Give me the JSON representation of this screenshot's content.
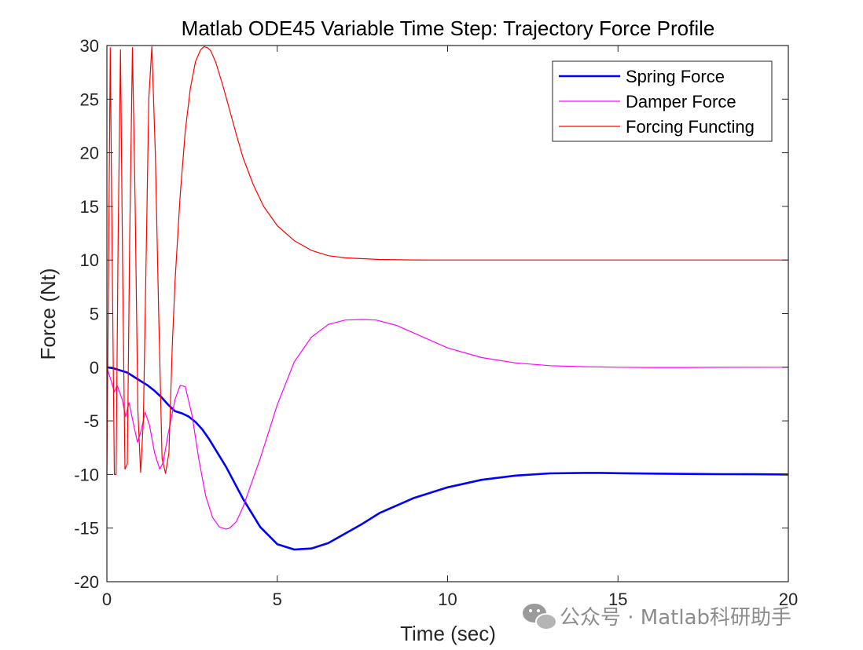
{
  "chart_data": {
    "type": "line",
    "title": "Matlab ODE45 Variable Time Step:  Trajectory Force Profile",
    "xlabel": "Time (sec)",
    "ylabel": "Force (Nt)",
    "xlim": [
      0,
      20
    ],
    "ylim": [
      -20,
      30
    ],
    "xticks": [
      0,
      5,
      10,
      15,
      20
    ],
    "xtick_labels": [
      "0",
      "5",
      "10",
      "15",
      "20"
    ],
    "yticks": [
      -20,
      -15,
      -10,
      -5,
      0,
      5,
      10,
      15,
      20,
      25,
      30
    ],
    "ytick_labels": [
      "-20",
      "-15",
      "-10",
      "-5",
      "0",
      "5",
      "10",
      "15",
      "20",
      "25",
      "30"
    ],
    "grid": false,
    "legend_position": "top-right",
    "series": [
      {
        "name": "Spring Force",
        "color": "#0000ff",
        "x": [
          0,
          0.2,
          0.4,
          0.6,
          0.8,
          1.0,
          1.2,
          1.4,
          1.6,
          1.8,
          2.0,
          2.2,
          2.4,
          2.6,
          2.8,
          3.0,
          3.5,
          4.0,
          4.5,
          5.0,
          5.5,
          6.0,
          6.5,
          7.0,
          7.5,
          8.0,
          9.0,
          10.0,
          11.0,
          12.0,
          13.0,
          14.0,
          14.5,
          15.0,
          16.0,
          17.0,
          18.0,
          19.0,
          20.0
        ],
        "y": [
          0,
          -0.1,
          -0.3,
          -0.5,
          -0.9,
          -1.3,
          -1.7,
          -2.2,
          -2.8,
          -3.5,
          -4.1,
          -4.3,
          -4.6,
          -5.1,
          -5.8,
          -6.7,
          -9.3,
          -12.3,
          -14.9,
          -16.5,
          -17.0,
          -16.9,
          -16.4,
          -15.5,
          -14.6,
          -13.6,
          -12.2,
          -11.2,
          -10.5,
          -10.1,
          -9.9,
          -9.85,
          -9.85,
          -9.88,
          -9.92,
          -9.95,
          -9.97,
          -9.98,
          -10.0
        ]
      },
      {
        "name": "Damper Force",
        "color": "#ff00ff",
        "x": [
          0,
          0.1,
          0.22,
          0.3,
          0.45,
          0.55,
          0.65,
          0.8,
          0.9,
          1.0,
          1.12,
          1.25,
          1.4,
          1.55,
          1.65,
          1.8,
          2.0,
          2.15,
          2.3,
          2.5,
          2.7,
          2.9,
          3.1,
          3.3,
          3.5,
          3.6,
          3.8,
          4.0,
          4.5,
          5.0,
          5.5,
          6.0,
          6.5,
          7.0,
          7.5,
          7.9,
          8.5,
          9.0,
          10.0,
          11.0,
          12.0,
          13.0,
          14.0,
          15.0,
          16.0,
          17.0,
          18.0,
          20.0
        ],
        "y": [
          0,
          -1.0,
          -2.3,
          -1.7,
          -3.0,
          -4.6,
          -3.3,
          -5.6,
          -7.0,
          -6.0,
          -4.2,
          -5.4,
          -8.0,
          -9.5,
          -8.9,
          -6.2,
          -3.0,
          -1.7,
          -1.8,
          -4.5,
          -8.6,
          -12.0,
          -14.0,
          -14.9,
          -15.1,
          -15.0,
          -14.4,
          -13.0,
          -8.5,
          -3.5,
          0.5,
          2.8,
          4.0,
          4.4,
          4.45,
          4.4,
          3.9,
          3.2,
          1.8,
          0.9,
          0.4,
          0.15,
          0.05,
          0.0,
          -0.02,
          -0.02,
          -0.01,
          0.0
        ]
      },
      {
        "name": "Forcing Functing",
        "color": "#ff0000",
        "x": [
          0,
          0.05,
          0.1,
          0.15,
          0.22,
          0.27,
          0.33,
          0.4,
          0.46,
          0.53,
          0.6,
          0.67,
          0.75,
          0.83,
          0.91,
          0.99,
          1.07,
          1.15,
          1.23,
          1.32,
          1.42,
          1.52,
          1.62,
          1.72,
          1.82,
          1.92,
          2.0,
          2.15,
          2.3,
          2.45,
          2.6,
          2.75,
          2.85,
          2.95,
          3.05,
          3.2,
          3.4,
          3.6,
          3.8,
          4.0,
          4.3,
          4.6,
          5.0,
          5.5,
          6.0,
          6.5,
          7.0,
          8.0,
          9.0,
          10.0,
          12.0,
          15.0,
          20.0
        ],
        "y": [
          -10,
          10,
          29.8,
          12,
          -10,
          -10,
          12,
          29.6,
          10,
          -9.5,
          -9,
          12,
          29.8,
          15,
          -4,
          -9.8,
          -5,
          10,
          25,
          29.9,
          20,
          5,
          -8.5,
          -9.9,
          -8,
          2,
          8,
          16,
          22,
          26,
          28.5,
          29.6,
          29.9,
          29.8,
          29.5,
          28.4,
          26.3,
          24.0,
          21.7,
          19.5,
          17.0,
          15.0,
          13.2,
          11.8,
          10.9,
          10.4,
          10.2,
          10.05,
          10.01,
          10.0,
          10.0,
          10.0,
          10.0
        ]
      }
    ]
  },
  "watermark": {
    "text": "公众号 · Matlab科研助手",
    "icon": "wechat-icon"
  }
}
